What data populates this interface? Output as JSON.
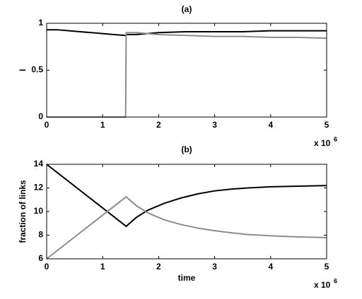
{
  "chart_data": [
    {
      "type": "line",
      "title": "(a)",
      "ylabel": "I",
      "offset_text": {
        "base": "x 10",
        "exponent": "6"
      },
      "x": [
        0,
        0.2,
        0.4,
        0.6,
        0.8,
        1.0,
        1.2,
        1.4,
        1.41,
        1.42,
        1.6,
        1.8,
        2,
        2.5,
        3,
        3.5,
        4,
        4.5,
        5
      ],
      "series": [
        {
          "color": "#000000",
          "values": [
            0.93,
            0.93,
            0.92,
            0.91,
            0.9,
            0.89,
            0.88,
            0.87,
            0.87,
            0.88,
            0.88,
            0.89,
            0.9,
            0.91,
            0.91,
            0.91,
            0.92,
            0.92,
            0.92
          ]
        },
        {
          "color": "#8c8c8c",
          "values": [
            0,
            0,
            0,
            0,
            0,
            0,
            0,
            0,
            0,
            0.9,
            0.9,
            0.89,
            0.88,
            0.87,
            0.86,
            0.86,
            0.85,
            0.85,
            0.84
          ]
        }
      ],
      "xlim": [
        0,
        5
      ],
      "xticks": [
        0,
        1,
        2,
        3,
        4,
        5
      ],
      "ylim": [
        0,
        1
      ],
      "yticks": [
        0,
        0.5,
        1
      ],
      "grid": false
    },
    {
      "type": "line",
      "title": "(b)",
      "ylabel": "fraction of links",
      "xlabel": "time",
      "offset_text": {
        "base": "x 10",
        "exponent": "6"
      },
      "x": [
        0,
        1.42,
        1.6,
        1.8,
        2.1,
        2.4,
        2.7,
        3.0,
        3.3,
        3.6,
        4.0,
        4.5,
        5
      ],
      "series": [
        {
          "color": "#000000",
          "values": [
            14,
            8.75,
            9.5,
            10.1,
            10.7,
            11.15,
            11.5,
            11.75,
            11.9,
            12.0,
            12.1,
            12.15,
            12.2
          ]
        },
        {
          "color": "#8c8c8c",
          "values": [
            6,
            11.25,
            10.5,
            9.9,
            9.3,
            8.9,
            8.6,
            8.38,
            8.2,
            8.05,
            7.95,
            7.85,
            7.8
          ]
        }
      ],
      "xlim": [
        0,
        5
      ],
      "xticks": [
        0,
        1,
        2,
        3,
        4,
        5
      ],
      "ylim": [
        6,
        14
      ],
      "yticks": [
        6,
        8,
        10,
        12,
        14
      ],
      "grid": false
    }
  ]
}
